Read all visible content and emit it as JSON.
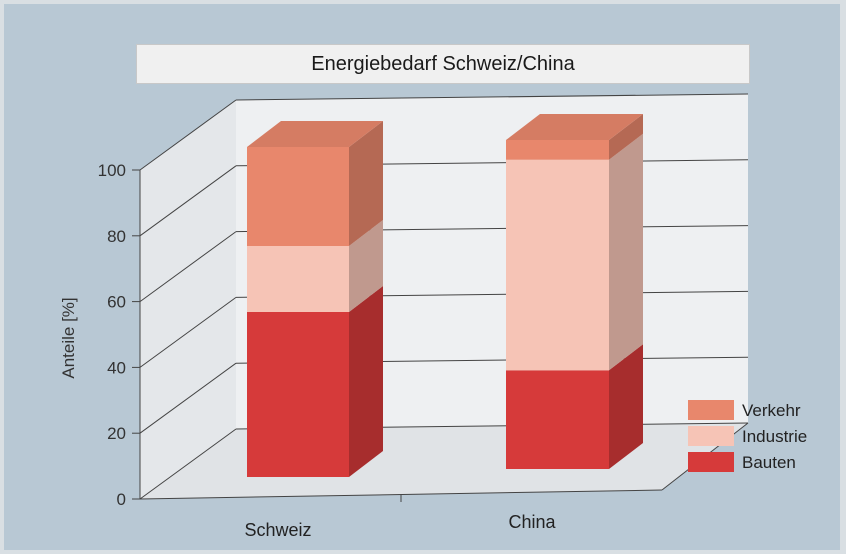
{
  "chart_data": {
    "type": "bar",
    "stacked": true,
    "three_d": true,
    "title": "Energiebedarf Schweiz/China",
    "ylabel": "Anteile [%]",
    "xlabel": "",
    "ylim": [
      0,
      100
    ],
    "yticks": [
      "0",
      "20",
      "40",
      "60",
      "80",
      "100"
    ],
    "categories": [
      "Schweiz",
      "China"
    ],
    "series": [
      {
        "name": "Bauten",
        "values": [
          50,
          30
        ],
        "color": "#d63a3a"
      },
      {
        "name": "Industrie",
        "values": [
          20,
          64
        ],
        "color": "#f6c4b6"
      },
      {
        "name": "Verkehr",
        "values": [
          30,
          6
        ],
        "color": "#e8876c"
      }
    ],
    "legend_order": [
      "Verkehr",
      "Industrie",
      "Bauten"
    ],
    "legend_position": "bottom-right",
    "grid": true
  }
}
